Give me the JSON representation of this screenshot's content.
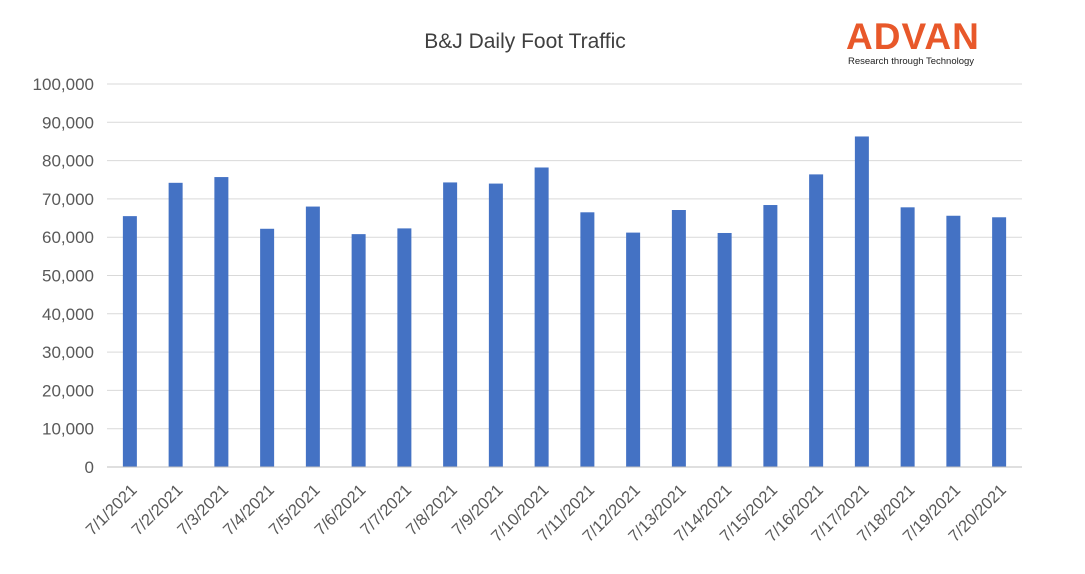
{
  "chart_data": {
    "type": "bar",
    "title": "B&J Daily Foot Traffic",
    "categories": [
      "7/1/2021",
      "7/2/2021",
      "7/3/2021",
      "7/4/2021",
      "7/5/2021",
      "7/6/2021",
      "7/7/2021",
      "7/8/2021",
      "7/9/2021",
      "7/10/2021",
      "7/11/2021",
      "7/12/2021",
      "7/13/2021",
      "7/14/2021",
      "7/15/2021",
      "7/16/2021",
      "7/17/2021",
      "7/18/2021",
      "7/19/2021",
      "7/20/2021"
    ],
    "values": [
      65500,
      74200,
      75700,
      62200,
      68000,
      60800,
      62300,
      74300,
      74000,
      78200,
      66500,
      61200,
      67100,
      61100,
      68400,
      76400,
      86300,
      67800,
      65600,
      65200
    ],
    "xlabel": "",
    "ylabel": "",
    "ylim": [
      0,
      100000
    ],
    "yticks": [
      "0",
      "10,000",
      "20,000",
      "30,000",
      "40,000",
      "50,000",
      "60,000",
      "70,000",
      "80,000",
      "90,000",
      "100,000"
    ],
    "grid": true,
    "bar_color": "#4472c4",
    "gridline_color": "#d9d9d9"
  },
  "logo": {
    "wordmark": "ADVAN",
    "tagline": "Research through Technology",
    "color": "#e8582a"
  }
}
